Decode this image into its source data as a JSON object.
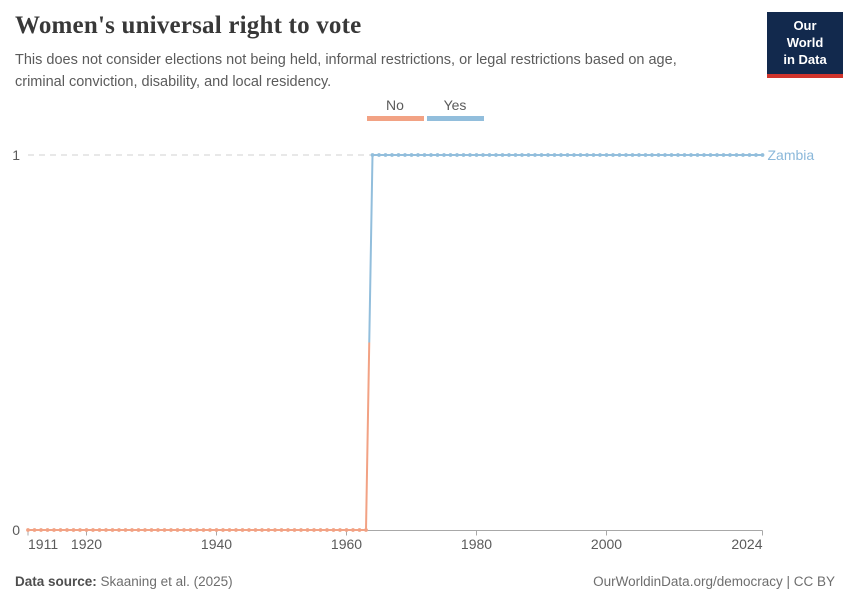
{
  "header": {
    "title": "Women's universal right to vote",
    "subtitle": "This does not consider elections not being held, informal restrictions, or legal restrictions based on age, criminal conviction, disability, and local residency."
  },
  "logo": {
    "line1": "Our World",
    "line2": "in Data",
    "bg_color": "#12294D",
    "accent_color": "#D0342C"
  },
  "legend": {
    "items": [
      {
        "label": "No",
        "color": "#F2A284"
      },
      {
        "label": "Yes",
        "color": "#92BEDC"
      }
    ]
  },
  "chart_data": {
    "type": "line",
    "step": true,
    "title": "Women's universal right to vote",
    "entity": "Zambia",
    "entity_label_color": "#8BB8DA",
    "xlim": [
      1911,
      2024
    ],
    "ylim": [
      0,
      1
    ],
    "x_ticks": [
      1911,
      1920,
      1940,
      1960,
      1980,
      2000,
      2024
    ],
    "y_ticks": [
      0,
      1
    ],
    "points_interval": "yearly",
    "series": [
      {
        "name": "No",
        "value": 0,
        "start_year": 1911,
        "end_year": 1963,
        "color": "#F2A284"
      },
      {
        "name": "Yes",
        "value": 1,
        "start_year": 1964,
        "end_year": 2024,
        "color": "#92BEDC"
      }
    ],
    "grid": {
      "dashed_gridline_at_y": 1,
      "grid_color": "#D0D0D0",
      "axis_color": "#A8A8A8",
      "tick_label_color": "#5B5B5B"
    },
    "legend_position": "top-center"
  },
  "footer": {
    "source_label": "Data source:",
    "source_value": " Skaaning et al. (2025)",
    "link": "OurWorldinData.org/democracy | CC BY"
  }
}
